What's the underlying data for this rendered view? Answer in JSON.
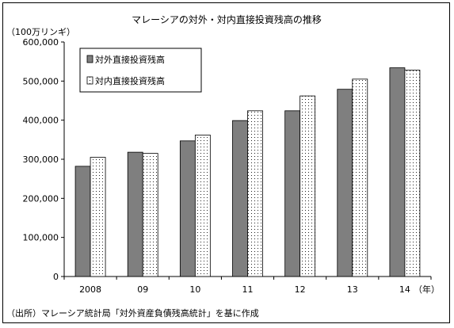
{
  "chart_data": {
    "type": "bar",
    "title": "マレーシアの対外・対内直接投資残高の推移",
    "unit_label": "（100万リンギ）",
    "categories": [
      "2008",
      "09",
      "10",
      "11",
      "12",
      "13",
      "14"
    ],
    "x_unit": "（年）",
    "ylim": [
      0,
      600000
    ],
    "yticks": [
      0,
      100000,
      200000,
      300000,
      400000,
      500000,
      600000
    ],
    "ytick_labels": [
      "0",
      "100,000",
      "200,000",
      "300,000",
      "400,000",
      "500,000",
      "600,000"
    ],
    "grid": false,
    "legend_position": "top-left",
    "series": [
      {
        "name": "対外直接投資残高",
        "color": "#7f7f7f",
        "pattern": "solid",
        "values": [
          282000,
          318000,
          347000,
          399000,
          424000,
          479000,
          534000
        ]
      },
      {
        "name": "対内直接投資残高",
        "color": "#ffffff",
        "pattern": "dots",
        "values": [
          305000,
          315000,
          362000,
          424000,
          462000,
          505000,
          528000
        ]
      }
    ]
  },
  "source": "（出所）マレーシア統計局「対外資産負債残高統計」を基に作成"
}
